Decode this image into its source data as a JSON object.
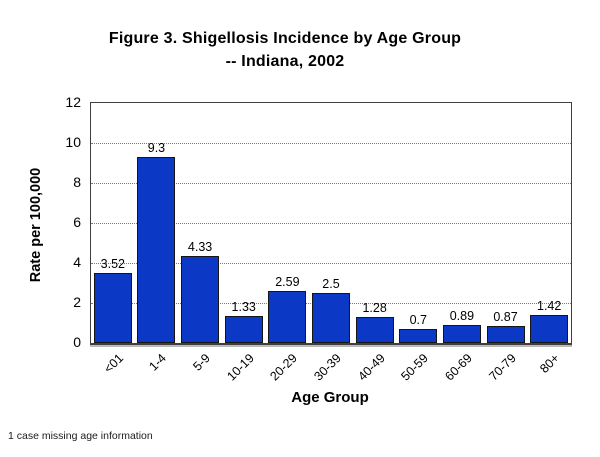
{
  "chart_data": {
    "type": "bar",
    "title_line1": "Figure 3. Shigellosis Incidence by Age Group",
    "title_line2": "-- Indiana, 2002",
    "categories": [
      "<01",
      "1-4",
      "5-9",
      "10-19",
      "20-29",
      "30-39",
      "40-49",
      "50-59",
      "60-69",
      "70-79",
      "80+"
    ],
    "values": [
      3.52,
      9.3,
      4.33,
      1.33,
      2.59,
      2.5,
      1.28,
      0.7,
      0.89,
      0.87,
      1.42
    ],
    "value_labels": [
      "3.52",
      "9.3",
      "4.33",
      "1.33",
      "2.59",
      "2.5",
      "1.28",
      "0.7",
      "0.89",
      "0.87",
      "1.42"
    ],
    "xlabel": "Age Group",
    "ylabel": "Rate per 100,000",
    "ylim": [
      0,
      12
    ],
    "yticks": [
      0,
      2,
      4,
      6,
      8,
      10,
      12
    ],
    "grid": "horizontal dotted lines at 2,4,6,8,10",
    "legend": "none",
    "bar_color": "#0c38c6",
    "bar_border_color": "#151515",
    "footnote": "1 case missing age information"
  }
}
